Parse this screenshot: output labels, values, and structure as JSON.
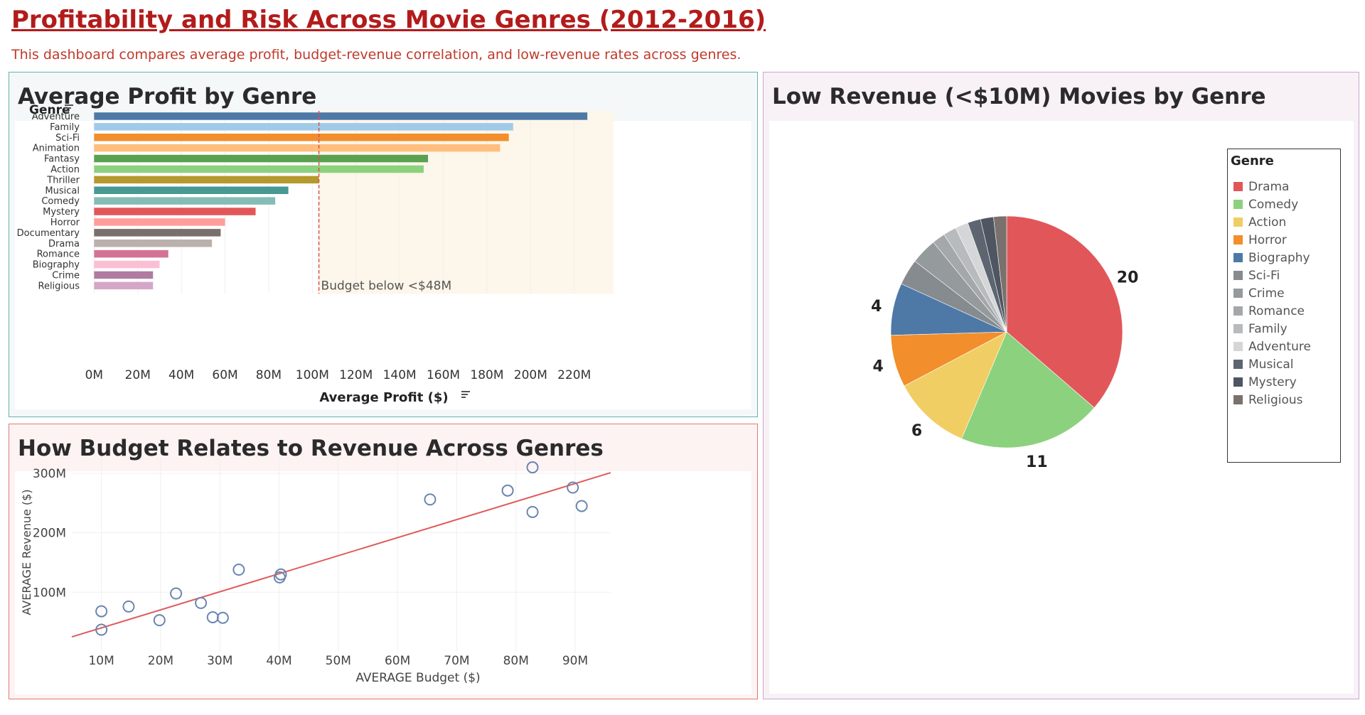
{
  "dashboard": {
    "title": "Profitability and Risk Across Movie Genres (2012-2016)",
    "subtitle": "This dashboard compares average profit, budget-revenue correlation, and low-revenue rates across genres."
  },
  "chart_data": [
    {
      "id": "avg-profit",
      "type": "bar",
      "orientation": "horizontal",
      "title": "Average Profit by Genre",
      "category_header": "Genre",
      "xlabel": "Average Profit ($)",
      "ylabel": "",
      "xlim": [
        -5,
        238
      ],
      "x_ticks": [
        0,
        20,
        40,
        60,
        80,
        100,
        120,
        140,
        160,
        180,
        200,
        220
      ],
      "x_tick_labels": [
        "0M",
        "20M",
        "40M",
        "60M",
        "80M",
        "100M",
        "120M",
        "140M",
        "160M",
        "180M",
        "200M",
        "220M"
      ],
      "categories": [
        "Adventure",
        "Family",
        "Sci-Fi",
        "Animation",
        "Fantasy",
        "Action",
        "Thriller",
        "Musical",
        "Comedy",
        "Mystery",
        "Horror",
        "Documentary",
        "Drama",
        "Romance",
        "Biography",
        "Crime",
        "Religious"
      ],
      "values": [
        226,
        192,
        190,
        186,
        153,
        151,
        103,
        89,
        83,
        74,
        60,
        58,
        54,
        34,
        30,
        27,
        27
      ],
      "value_unit": "$M",
      "colors": [
        "#4e79a7",
        "#a0cbe8",
        "#f28e2b",
        "#ffbe7d",
        "#59a14f",
        "#8cd17d",
        "#b6992d",
        "#499894",
        "#86bcb6",
        "#e15759",
        "#ff9d9a",
        "#79706e",
        "#bab0ac",
        "#d37295",
        "#fabfd2",
        "#b07aa1",
        "#d4a6c8"
      ],
      "reference_line": {
        "value": 103,
        "label": "Budget below <$48M",
        "color": "#d9534f"
      },
      "shaded_region": {
        "from": 103,
        "to": 238,
        "color": "#fdf6ea"
      },
      "grid": true
    },
    {
      "id": "budget-revenue",
      "type": "scatter",
      "title": "How Budget Relates to Revenue Across Genres",
      "xlabel": "AVERAGE Budget ($)",
      "ylabel": "AVERAGE Revenue ($)",
      "xlim": [
        5,
        96
      ],
      "ylim": [
        0,
        325
      ],
      "x_ticks": [
        10,
        20,
        30,
        40,
        50,
        60,
        70,
        80,
        90
      ],
      "x_tick_labels": [
        "10M",
        "20M",
        "30M",
        "40M",
        "50M",
        "60M",
        "70M",
        "80M",
        "90M"
      ],
      "y_ticks": [
        100,
        200,
        300
      ],
      "y_tick_labels": [
        "100M",
        "200M",
        "300M"
      ],
      "unit": "$M",
      "points": [
        {
          "x": 10,
          "y": 68
        },
        {
          "x": 10,
          "y": 37
        },
        {
          "x": 14.6,
          "y": 76
        },
        {
          "x": 19.8,
          "y": 53
        },
        {
          "x": 22.6,
          "y": 98
        },
        {
          "x": 26.8,
          "y": 82
        },
        {
          "x": 28.8,
          "y": 58
        },
        {
          "x": 30.5,
          "y": 57
        },
        {
          "x": 33.2,
          "y": 138
        },
        {
          "x": 40.1,
          "y": 125
        },
        {
          "x": 40.3,
          "y": 130
        },
        {
          "x": 65.5,
          "y": 256
        },
        {
          "x": 78.6,
          "y": 271
        },
        {
          "x": 82.8,
          "y": 310
        },
        {
          "x": 82.8,
          "y": 235
        },
        {
          "x": 89.6,
          "y": 276
        },
        {
          "x": 91.1,
          "y": 245
        }
      ],
      "trend_line": {
        "from": [
          5,
          25
        ],
        "to": [
          96,
          301
        ],
        "color": "#e05b5b"
      },
      "marker_color": "#6a86b0",
      "grid": true
    },
    {
      "id": "low-revenue",
      "type": "pie",
      "title": "Low Revenue (<$10M) Movies by Genre",
      "legend_title": "Genre",
      "legend_position": "right",
      "slices": [
        {
          "label": "Drama",
          "value": 20,
          "color": "#e15759",
          "data_label": "20"
        },
        {
          "label": "Comedy",
          "value": 11,
          "color": "#8cd17d",
          "data_label": "11"
        },
        {
          "label": "Action",
          "value": 6,
          "color": "#f1ce63",
          "data_label": "6"
        },
        {
          "label": "Horror",
          "value": 4,
          "color": "#f28e2b",
          "data_label": "4"
        },
        {
          "label": "Biography",
          "value": 4,
          "color": "#4e79a7",
          "data_label": "4"
        },
        {
          "label": "Sci-Fi",
          "value": 2,
          "color": "#868b90",
          "data_label": ""
        },
        {
          "label": "Crime",
          "value": 2,
          "color": "#959a9d",
          "data_label": ""
        },
        {
          "label": "Romance",
          "value": 1,
          "color": "#a5a8aa",
          "data_label": ""
        },
        {
          "label": "Family",
          "value": 1,
          "color": "#b8bbbd",
          "data_label": ""
        },
        {
          "label": "Adventure",
          "value": 1,
          "color": "#d4d6d8",
          "data_label": ""
        },
        {
          "label": "Musical",
          "value": 1,
          "color": "#5d6570",
          "data_label": ""
        },
        {
          "label": "Mystery",
          "value": 1,
          "color": "#4e5661",
          "data_label": ""
        },
        {
          "label": "Religious",
          "value": 1,
          "color": "#7a716e",
          "data_label": ""
        }
      ]
    }
  ]
}
